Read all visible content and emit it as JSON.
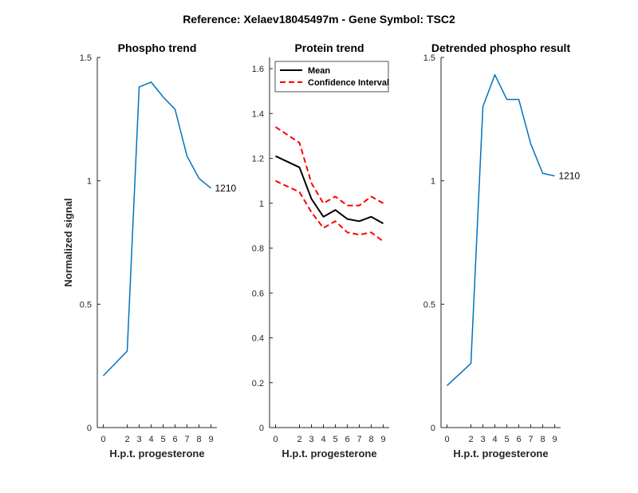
{
  "suptitle": "Reference:  Xelaev18045497m - Gene Symbol:  TSC2",
  "chart_data": [
    {
      "type": "line",
      "title": "Phospho trend",
      "xlabel": "H.p.t. progesterone",
      "ylabel": "Normalized signal",
      "ylim": [
        0,
        1.5
      ],
      "xlim": [
        -0.5,
        9.5
      ],
      "yticks": [
        0,
        0.5,
        1,
        1.5
      ],
      "yticklabels": [
        "0",
        "0.5",
        "1",
        "1.5"
      ],
      "xticks": [
        0,
        2,
        3,
        4,
        5,
        6,
        7,
        8,
        9
      ],
      "xticklabels": [
        "0",
        "2",
        "3",
        "4",
        "5",
        "6",
        "7",
        "8",
        "9"
      ],
      "series": [
        {
          "color": "#0072BD",
          "x": [
            0,
            2,
            3,
            4,
            5,
            6,
            7,
            8,
            9
          ],
          "y": [
            0.21,
            0.31,
            1.38,
            1.4,
            1.34,
            1.29,
            1.1,
            1.01,
            0.97
          ],
          "end_label": "1210"
        }
      ]
    },
    {
      "type": "line",
      "title": "Protein trend",
      "xlabel": "H.p.t. progesterone",
      "ylim": [
        0,
        1.65
      ],
      "xlim": [
        -0.5,
        9.5
      ],
      "yticks": [
        0,
        0.2,
        0.4,
        0.6,
        0.8,
        1,
        1.2,
        1.4,
        1.6
      ],
      "yticklabels": [
        "0",
        "0.2",
        "0.4",
        "0.6",
        "0.8",
        "1",
        "1.2",
        "1.4",
        "1.6"
      ],
      "xticks": [
        0,
        2,
        3,
        4,
        5,
        6,
        7,
        8,
        9
      ],
      "xticklabels": [
        "0",
        "2",
        "3",
        "4",
        "5",
        "6",
        "7",
        "8",
        "9"
      ],
      "legend": {
        "placement": "top-left"
      },
      "series": [
        {
          "name": "Mean",
          "color": "#000000",
          "dash": false,
          "x": [
            0,
            2,
            3,
            4,
            5,
            6,
            7,
            8,
            9
          ],
          "y": [
            1.21,
            1.16,
            1.02,
            0.94,
            0.97,
            0.93,
            0.92,
            0.94,
            0.91
          ]
        },
        {
          "name": "Confidence Interval",
          "color": "#FF0000",
          "dash": true,
          "x": [
            0,
            2,
            3,
            4,
            5,
            6,
            7,
            8,
            9
          ],
          "y": [
            1.34,
            1.27,
            1.09,
            1.0,
            1.03,
            0.99,
            0.99,
            1.03,
            1.0
          ]
        },
        {
          "name": "",
          "color": "#FF0000",
          "dash": true,
          "x": [
            0,
            2,
            3,
            4,
            5,
            6,
            7,
            8,
            9
          ],
          "y": [
            1.1,
            1.05,
            0.96,
            0.89,
            0.92,
            0.87,
            0.86,
            0.87,
            0.83
          ]
        }
      ]
    },
    {
      "type": "line",
      "title": "Detrended phospho result",
      "xlabel": "H.p.t. progesterone",
      "ylim": [
        0,
        1.5
      ],
      "xlim": [
        -0.5,
        9.5
      ],
      "yticks": [
        0,
        0.5,
        1,
        1.5
      ],
      "yticklabels": [
        "0",
        "0.5",
        "1",
        "1.5"
      ],
      "xticks": [
        0,
        2,
        3,
        4,
        5,
        6,
        7,
        8,
        9
      ],
      "xticklabels": [
        "0",
        "2",
        "3",
        "4",
        "5",
        "6",
        "7",
        "8",
        "9"
      ],
      "series": [
        {
          "color": "#0072BD",
          "x": [
            0,
            2,
            3,
            4,
            5,
            6,
            7,
            8,
            9
          ],
          "y": [
            0.17,
            0.26,
            1.3,
            1.43,
            1.33,
            1.33,
            1.15,
            1.03,
            1.02
          ],
          "end_label": "1210"
        }
      ]
    }
  ]
}
